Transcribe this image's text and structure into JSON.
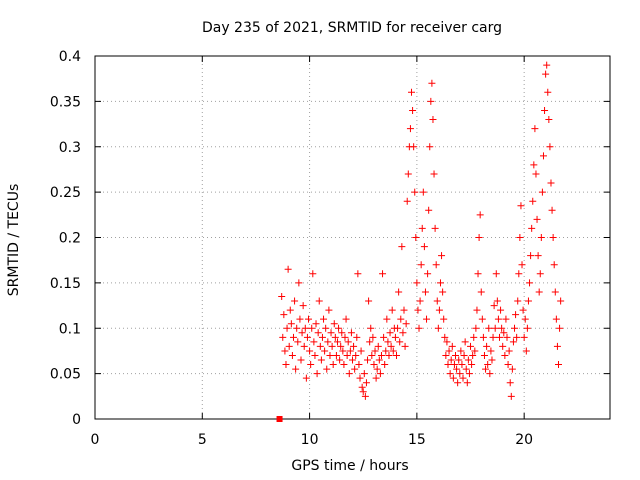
{
  "chart_data": {
    "type": "scatter",
    "title": "Day 235 of 2021, SRMTID for receiver carg",
    "xlabel": "GPS time / hours",
    "ylabel": "SRMTID / TECUs",
    "xlim": [
      0,
      24
    ],
    "ylim": [
      0,
      0.4
    ],
    "x_ticks": [
      0,
      5,
      10,
      15,
      20
    ],
    "y_ticks": [
      0,
      0.05,
      0.1,
      0.15,
      0.2,
      0.25,
      0.3,
      0.35,
      0.4
    ],
    "x_tick_labels": [
      "0",
      "5",
      "10",
      "15",
      "20"
    ],
    "y_tick_labels": [
      "0",
      "0.05",
      "0.1",
      "0.15",
      "0.2",
      "0.25",
      "0.3",
      "0.35",
      "0.4"
    ],
    "grid": true,
    "marker": "plus",
    "color": "#ff0000",
    "square_marker": {
      "x": 8.6,
      "y": 0.0
    },
    "series": [
      {
        "name": "SRMTID",
        "points": [
          [
            8.7,
            0.135
          ],
          [
            8.75,
            0.09
          ],
          [
            8.8,
            0.115
          ],
          [
            8.85,
            0.075
          ],
          [
            8.9,
            0.06
          ],
          [
            8.95,
            0.1
          ],
          [
            9.0,
            0.165
          ],
          [
            9.05,
            0.08
          ],
          [
            9.1,
            0.12
          ],
          [
            9.15,
            0.105
          ],
          [
            9.2,
            0.07
          ],
          [
            9.25,
            0.09
          ],
          [
            9.3,
            0.13
          ],
          [
            9.35,
            0.055
          ],
          [
            9.4,
            0.1
          ],
          [
            9.45,
            0.085
          ],
          [
            9.5,
            0.15
          ],
          [
            9.55,
            0.11
          ],
          [
            9.6,
            0.065
          ],
          [
            9.65,
            0.095
          ],
          [
            9.7,
            0.125
          ],
          [
            9.75,
            0.08
          ],
          [
            9.8,
            0.1
          ],
          [
            9.85,
            0.045
          ],
          [
            9.9,
            0.09
          ],
          [
            9.95,
            0.11
          ],
          [
            10.0,
            0.075
          ],
          [
            10.05,
            0.06
          ],
          [
            10.1,
            0.1
          ],
          [
            10.15,
            0.16
          ],
          [
            10.2,
            0.085
          ],
          [
            10.25,
            0.07
          ],
          [
            10.3,
            0.105
          ],
          [
            10.35,
            0.05
          ],
          [
            10.4,
            0.095
          ],
          [
            10.45,
            0.13
          ],
          [
            10.5,
            0.08
          ],
          [
            10.55,
            0.065
          ],
          [
            10.6,
            0.09
          ],
          [
            10.65,
            0.11
          ],
          [
            10.7,
            0.075
          ],
          [
            10.75,
            0.1
          ],
          [
            10.8,
            0.055
          ],
          [
            10.85,
            0.085
          ],
          [
            10.9,
            0.12
          ],
          [
            10.95,
            0.07
          ],
          [
            11.0,
            0.095
          ],
          [
            11.05,
            0.08
          ],
          [
            11.1,
            0.06
          ],
          [
            11.15,
            0.105
          ],
          [
            11.2,
            0.09
          ],
          [
            11.25,
            0.07
          ],
          [
            11.3,
            0.085
          ],
          [
            11.35,
            0.1
          ],
          [
            11.4,
            0.065
          ],
          [
            11.45,
            0.08
          ],
          [
            11.5,
            0.095
          ],
          [
            11.55,
            0.075
          ],
          [
            11.6,
            0.06
          ],
          [
            11.65,
            0.09
          ],
          [
            11.7,
            0.11
          ],
          [
            11.75,
            0.07
          ],
          [
            11.8,
            0.085
          ],
          [
            11.85,
            0.05
          ],
          [
            11.9,
            0.075
          ],
          [
            11.95,
            0.095
          ],
          [
            12.0,
            0.065
          ],
          [
            12.05,
            0.08
          ],
          [
            12.1,
            0.055
          ],
          [
            12.15,
            0.07
          ],
          [
            12.2,
            0.09
          ],
          [
            12.25,
            0.16
          ],
          [
            12.3,
            0.06
          ],
          [
            12.35,
            0.045
          ],
          [
            12.4,
            0.075
          ],
          [
            12.45,
            0.035
          ],
          [
            12.5,
            0.03
          ],
          [
            12.55,
            0.05
          ],
          [
            12.6,
            0.025
          ],
          [
            12.65,
            0.04
          ],
          [
            12.7,
            0.065
          ],
          [
            12.75,
            0.13
          ],
          [
            12.8,
            0.085
          ],
          [
            12.85,
            0.1
          ],
          [
            12.9,
            0.07
          ],
          [
            12.95,
            0.09
          ],
          [
            13.0,
            0.06
          ],
          [
            13.05,
            0.075
          ],
          [
            13.1,
            0.045
          ],
          [
            13.15,
            0.055
          ],
          [
            13.2,
            0.08
          ],
          [
            13.25,
            0.065
          ],
          [
            13.3,
            0.05
          ],
          [
            13.35,
            0.07
          ],
          [
            13.4,
            0.16
          ],
          [
            13.45,
            0.09
          ],
          [
            13.5,
            0.06
          ],
          [
            13.55,
            0.075
          ],
          [
            13.6,
            0.11
          ],
          [
            13.65,
            0.085
          ],
          [
            13.7,
            0.07
          ],
          [
            13.75,
            0.095
          ],
          [
            13.8,
            0.08
          ],
          [
            13.85,
            0.12
          ],
          [
            13.9,
            0.075
          ],
          [
            13.95,
            0.1
          ],
          [
            14.0,
            0.09
          ],
          [
            14.05,
            0.07
          ],
          [
            14.1,
            0.1
          ],
          [
            14.15,
            0.14
          ],
          [
            14.2,
            0.085
          ],
          [
            14.25,
            0.11
          ],
          [
            14.3,
            0.19
          ],
          [
            14.35,
            0.095
          ],
          [
            14.4,
            0.12
          ],
          [
            14.45,
            0.08
          ],
          [
            14.5,
            0.105
          ],
          [
            14.55,
            0.24
          ],
          [
            14.6,
            0.27
          ],
          [
            14.65,
            0.3
          ],
          [
            14.7,
            0.32
          ],
          [
            14.75,
            0.36
          ],
          [
            14.8,
            0.34
          ],
          [
            14.85,
            0.3
          ],
          [
            14.9,
            0.25
          ],
          [
            14.95,
            0.2
          ],
          [
            15.0,
            0.15
          ],
          [
            15.05,
            0.12
          ],
          [
            15.1,
            0.1
          ],
          [
            15.15,
            0.13
          ],
          [
            15.2,
            0.17
          ],
          [
            15.25,
            0.21
          ],
          [
            15.3,
            0.25
          ],
          [
            15.35,
            0.19
          ],
          [
            15.4,
            0.14
          ],
          [
            15.45,
            0.11
          ],
          [
            15.5,
            0.16
          ],
          [
            15.55,
            0.23
          ],
          [
            15.6,
            0.3
          ],
          [
            15.65,
            0.35
          ],
          [
            15.7,
            0.37
          ],
          [
            15.75,
            0.33
          ],
          [
            15.8,
            0.27
          ],
          [
            15.85,
            0.21
          ],
          [
            15.9,
            0.17
          ],
          [
            15.95,
            0.13
          ],
          [
            16.0,
            0.1
          ],
          [
            16.05,
            0.12
          ],
          [
            16.1,
            0.15
          ],
          [
            16.15,
            0.18
          ],
          [
            16.2,
            0.14
          ],
          [
            16.25,
            0.11
          ],
          [
            16.3,
            0.09
          ],
          [
            16.35,
            0.07
          ],
          [
            16.4,
            0.085
          ],
          [
            16.45,
            0.06
          ],
          [
            16.5,
            0.075
          ],
          [
            16.55,
            0.05
          ],
          [
            16.6,
            0.065
          ],
          [
            16.65,
            0.08
          ],
          [
            16.7,
            0.045
          ],
          [
            16.75,
            0.06
          ],
          [
            16.8,
            0.07
          ],
          [
            16.85,
            0.055
          ],
          [
            16.9,
            0.04
          ],
          [
            16.95,
            0.065
          ],
          [
            17.0,
            0.05
          ],
          [
            17.05,
            0.075
          ],
          [
            17.1,
            0.06
          ],
          [
            17.15,
            0.045
          ],
          [
            17.2,
            0.07
          ],
          [
            17.25,
            0.085
          ],
          [
            17.3,
            0.055
          ],
          [
            17.35,
            0.04
          ],
          [
            17.4,
            0.065
          ],
          [
            17.45,
            0.05
          ],
          [
            17.5,
            0.08
          ],
          [
            17.55,
            0.06
          ],
          [
            17.6,
            0.07
          ],
          [
            17.65,
            0.09
          ],
          [
            17.7,
            0.075
          ],
          [
            17.75,
            0.1
          ],
          [
            17.8,
            0.12
          ],
          [
            17.85,
            0.16
          ],
          [
            17.9,
            0.2
          ],
          [
            17.95,
            0.225
          ],
          [
            18.0,
            0.14
          ],
          [
            18.05,
            0.11
          ],
          [
            18.1,
            0.09
          ],
          [
            18.15,
            0.07
          ],
          [
            18.2,
            0.055
          ],
          [
            18.25,
            0.08
          ],
          [
            18.3,
            0.06
          ],
          [
            18.35,
            0.1
          ],
          [
            18.4,
            0.05
          ],
          [
            18.45,
            0.075
          ],
          [
            18.5,
            0.065
          ],
          [
            18.55,
            0.09
          ],
          [
            18.6,
            0.125
          ],
          [
            18.65,
            0.1
          ],
          [
            18.7,
            0.16
          ],
          [
            18.75,
            0.13
          ],
          [
            18.8,
            0.11
          ],
          [
            18.85,
            0.09
          ],
          [
            18.9,
            0.12
          ],
          [
            18.95,
            0.1
          ],
          [
            19.0,
            0.08
          ],
          [
            19.05,
            0.095
          ],
          [
            19.1,
            0.07
          ],
          [
            19.15,
            0.11
          ],
          [
            19.2,
            0.09
          ],
          [
            19.25,
            0.06
          ],
          [
            19.3,
            0.075
          ],
          [
            19.35,
            0.04
          ],
          [
            19.4,
            0.025
          ],
          [
            19.45,
            0.055
          ],
          [
            19.5,
            0.085
          ],
          [
            19.55,
            0.1
          ],
          [
            19.6,
            0.115
          ],
          [
            19.65,
            0.09
          ],
          [
            19.7,
            0.13
          ],
          [
            19.75,
            0.16
          ],
          [
            19.8,
            0.2
          ],
          [
            19.85,
            0.235
          ],
          [
            19.9,
            0.17
          ],
          [
            19.95,
            0.12
          ],
          [
            20.0,
            0.09
          ],
          [
            20.05,
            0.11
          ],
          [
            20.1,
            0.075
          ],
          [
            20.15,
            0.1
          ],
          [
            20.2,
            0.13
          ],
          [
            20.25,
            0.15
          ],
          [
            20.3,
            0.18
          ],
          [
            20.35,
            0.21
          ],
          [
            20.4,
            0.24
          ],
          [
            20.45,
            0.28
          ],
          [
            20.5,
            0.32
          ],
          [
            20.55,
            0.27
          ],
          [
            20.6,
            0.22
          ],
          [
            20.65,
            0.18
          ],
          [
            20.7,
            0.14
          ],
          [
            20.75,
            0.16
          ],
          [
            20.8,
            0.2
          ],
          [
            20.85,
            0.25
          ],
          [
            20.9,
            0.29
          ],
          [
            20.95,
            0.34
          ],
          [
            21.0,
            0.38
          ],
          [
            21.05,
            0.39
          ],
          [
            21.1,
            0.36
          ],
          [
            21.15,
            0.33
          ],
          [
            21.2,
            0.3
          ],
          [
            21.25,
            0.26
          ],
          [
            21.3,
            0.23
          ],
          [
            21.35,
            0.2
          ],
          [
            21.4,
            0.17
          ],
          [
            21.45,
            0.14
          ],
          [
            21.5,
            0.11
          ],
          [
            21.55,
            0.08
          ],
          [
            21.6,
            0.06
          ],
          [
            21.65,
            0.1
          ],
          [
            21.7,
            0.13
          ]
        ]
      }
    ]
  }
}
